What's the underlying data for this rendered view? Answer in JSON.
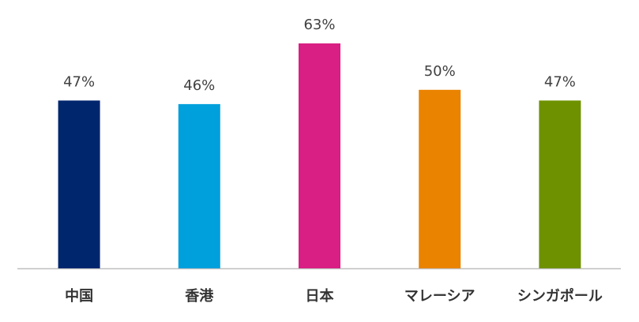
{
  "chart_data": {
    "type": "bar",
    "categories": [
      "中国",
      "香港",
      "日本",
      "マレーシア",
      "シンガポール"
    ],
    "values": [
      47,
      46,
      63,
      50,
      47
    ],
    "value_labels": [
      "47%",
      "46%",
      "63%",
      "50%",
      "47%"
    ],
    "colors": [
      "#00266e",
      "#00a0dc",
      "#d91f84",
      "#ea8300",
      "#6e9100"
    ]
  }
}
